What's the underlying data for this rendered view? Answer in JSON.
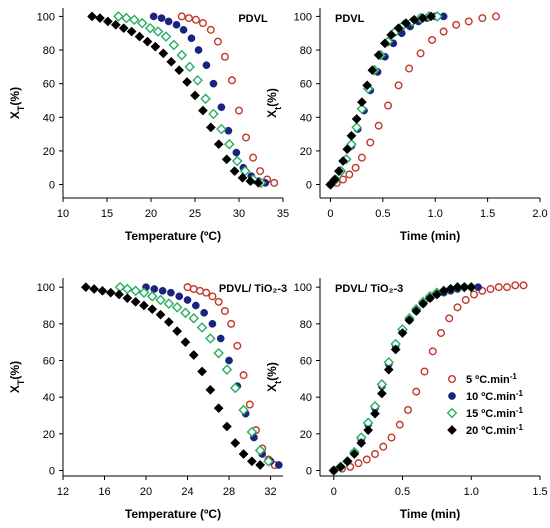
{
  "legend": {
    "entries": [
      {
        "label": "5 ºC.min",
        "sup": "-1",
        "marker": "open-circle",
        "color": "#c0392b"
      },
      {
        "label": "10 ºC.min",
        "sup": "-1",
        "marker": "filled-circle",
        "color": "#1a237e"
      },
      {
        "label": "15 ºC.min",
        "sup": "-1",
        "marker": "open-diamond",
        "color": "#27ae60"
      },
      {
        "label": "20 ºC.min",
        "sup": "-1",
        "marker": "filled-diamond",
        "color": "#000000"
      }
    ]
  },
  "chart_data": [
    {
      "type": "scatter",
      "panel_label": "PDVL",
      "xlabel": "Temperature (ºC)",
      "ylabel": "X_T(%)",
      "xlim": [
        10,
        35
      ],
      "ylim": [
        -8,
        105
      ],
      "xticks": [
        "10",
        "15",
        "20",
        "25",
        "30",
        "35"
      ],
      "yticks": [
        "0",
        "20",
        "40",
        "60",
        "80",
        "100"
      ],
      "series": [
        {
          "marker": "open-circle",
          "color": "#c0392b",
          "x": [
            23.5,
            24.3,
            25.1,
            25.9,
            26.8,
            27.6,
            28.4,
            29.2,
            30.0,
            30.8,
            31.6,
            32.4,
            33.2,
            34.0
          ],
          "y": [
            100,
            99,
            98,
            96,
            92,
            85,
            76,
            62,
            44,
            28,
            16,
            8,
            3,
            1
          ]
        },
        {
          "marker": "filled-circle",
          "color": "#1a237e",
          "x": [
            20.3,
            21.2,
            22.0,
            22.9,
            23.7,
            24.6,
            25.4,
            26.3,
            27.1,
            28.0,
            28.8,
            29.7,
            30.5,
            31.4,
            32.2,
            33.0
          ],
          "y": [
            100,
            99,
            97,
            95,
            92,
            87,
            80,
            71,
            60,
            46,
            32,
            19,
            10,
            5,
            2,
            1
          ]
        },
        {
          "marker": "open-diamond",
          "color": "#27ae60",
          "x": [
            16.3,
            17.2,
            18.1,
            19.0,
            19.9,
            20.8,
            21.7,
            22.6,
            23.5,
            24.4,
            25.3,
            26.2,
            27.1,
            28.0,
            28.9,
            29.8,
            30.7,
            31.6,
            32.5
          ],
          "y": [
            100,
            99,
            98,
            96,
            93,
            91,
            88,
            83,
            77,
            70,
            62,
            51,
            42,
            33,
            24,
            14,
            8,
            3,
            1
          ]
        },
        {
          "marker": "filled-diamond",
          "color": "#000000",
          "x": [
            13.3,
            14.2,
            15.1,
            16.0,
            16.9,
            17.8,
            18.7,
            19.6,
            20.5,
            21.4,
            22.3,
            23.2,
            24.1,
            25.0,
            25.9,
            26.8,
            27.7,
            28.6,
            29.5,
            30.4,
            31.3,
            32.2
          ],
          "y": [
            100,
            99,
            97,
            95,
            93,
            91,
            88,
            85,
            82,
            78,
            73,
            68,
            61,
            53,
            44,
            34,
            24,
            15,
            8,
            4,
            2,
            1
          ]
        }
      ]
    },
    {
      "type": "scatter",
      "panel_label": "PDVL",
      "xlabel": "Time (min)",
      "ylabel": "X_t(%)",
      "xlim": [
        -0.1,
        2.0
      ],
      "ylim": [
        -8,
        105
      ],
      "xticks": [
        "0",
        "0.5",
        "1.0",
        "1.5",
        "2.0"
      ],
      "yticks": [
        "0",
        "20",
        "40",
        "60",
        "80",
        "100"
      ],
      "series": [
        {
          "marker": "open-circle",
          "color": "#c0392b",
          "x": [
            0,
            0.06,
            0.12,
            0.18,
            0.24,
            0.3,
            0.38,
            0.46,
            0.55,
            0.65,
            0.75,
            0.86,
            0.97,
            1.08,
            1.2,
            1.32,
            1.45,
            1.58
          ],
          "y": [
            0,
            1,
            3,
            6,
            10,
            16,
            25,
            35,
            47,
            59,
            69,
            78,
            86,
            91,
            95,
            97,
            99,
            100
          ]
        },
        {
          "marker": "filled-circle",
          "color": "#1a237e",
          "x": [
            0,
            0.05,
            0.1,
            0.15,
            0.2,
            0.26,
            0.32,
            0.38,
            0.45,
            0.52,
            0.6,
            0.68,
            0.76,
            0.84,
            0.92,
            1.0,
            1.08
          ],
          "y": [
            0,
            3,
            8,
            15,
            23,
            33,
            44,
            56,
            67,
            76,
            84,
            90,
            94,
            97,
            99,
            100,
            100
          ]
        },
        {
          "marker": "open-diamond",
          "color": "#27ae60",
          "x": [
            0,
            0.05,
            0.1,
            0.15,
            0.2,
            0.25,
            0.3,
            0.36,
            0.42,
            0.48,
            0.55,
            0.62,
            0.7,
            0.78,
            0.86,
            0.94,
            1.02
          ],
          "y": [
            0,
            3,
            8,
            15,
            24,
            34,
            45,
            57,
            68,
            77,
            85,
            91,
            95,
            97,
            99,
            100,
            100
          ]
        },
        {
          "marker": "filled-diamond",
          "color": "#000000",
          "x": [
            0,
            0.04,
            0.08,
            0.12,
            0.16,
            0.2,
            0.25,
            0.3,
            0.35,
            0.4,
            0.46,
            0.52,
            0.58,
            0.65,
            0.72,
            0.8,
            0.88,
            0.96
          ],
          "y": [
            0,
            3,
            8,
            14,
            21,
            29,
            39,
            49,
            59,
            68,
            77,
            84,
            89,
            93,
            96,
            98,
            99,
            100
          ]
        }
      ]
    },
    {
      "type": "scatter",
      "panel_label": "PDVL/ TiO₂-3",
      "xlabel": "Temperature (ºC)",
      "ylabel": "X_T(%)",
      "xlim": [
        12,
        33.2
      ],
      "ylim": [
        -3,
        105
      ],
      "xticks": [
        "12",
        "16",
        "20",
        "24",
        "28",
        "32"
      ],
      "yticks": [
        "0",
        "20",
        "40",
        "60",
        "80",
        "100"
      ],
      "series": [
        {
          "marker": "open-circle",
          "color": "#c0392b",
          "x": [
            24.0,
            24.6,
            25.2,
            25.8,
            26.4,
            27.0,
            27.6,
            28.2,
            28.8,
            29.4,
            30.0,
            30.6,
            31.2,
            31.8,
            32.4
          ],
          "y": [
            100,
            99,
            98,
            97,
            95,
            92,
            87,
            80,
            68,
            52,
            36,
            22,
            12,
            6,
            3
          ]
        },
        {
          "marker": "filled-circle",
          "color": "#1a237e",
          "x": [
            20.0,
            20.8,
            21.6,
            22.4,
            23.2,
            24.0,
            24.8,
            25.6,
            26.4,
            27.2,
            28.0,
            28.8,
            29.6,
            30.4,
            31.2,
            32.0,
            32.8
          ],
          "y": [
            100,
            99,
            98,
            97,
            95,
            93,
            90,
            86,
            80,
            72,
            60,
            46,
            31,
            18,
            9,
            5,
            3
          ]
        },
        {
          "marker": "open-diamond",
          "color": "#27ae60",
          "x": [
            17.5,
            18.2,
            19.0,
            19.8,
            20.6,
            21.4,
            22.2,
            23.0,
            23.8,
            24.6,
            25.4,
            26.2,
            27.0,
            27.8,
            28.6,
            29.4,
            30.2,
            31.0,
            31.8
          ],
          "y": [
            100,
            99,
            98,
            97,
            95,
            93,
            91,
            89,
            86,
            83,
            78,
            72,
            64,
            55,
            45,
            33,
            21,
            11,
            5
          ]
        },
        {
          "marker": "filled-diamond",
          "color": "#000000",
          "x": [
            14.2,
            15.0,
            15.8,
            16.6,
            17.4,
            18.2,
            19.0,
            19.8,
            20.6,
            21.4,
            22.2,
            23.0,
            23.8,
            24.6,
            25.4,
            26.2,
            27.0,
            27.8,
            28.6,
            29.4,
            30.2,
            31.0
          ],
          "y": [
            100,
            99,
            98,
            97,
            96,
            94,
            92,
            90,
            88,
            85,
            81,
            76,
            70,
            63,
            54,
            44,
            34,
            24,
            15,
            9,
            5,
            3
          ]
        }
      ]
    },
    {
      "type": "scatter",
      "panel_label": "PDVL/ TiO₂-3",
      "xlabel": "Time (min)",
      "ylabel": "X_t(%)",
      "xlim": [
        -0.1,
        1.5
      ],
      "ylim": [
        -3,
        105
      ],
      "xticks": [
        "0",
        "0.5",
        "1.0",
        "1.5"
      ],
      "yticks": [
        "0",
        "20",
        "40",
        "60",
        "80",
        "100"
      ],
      "series": [
        {
          "marker": "open-circle",
          "color": "#c0392b",
          "x": [
            0,
            0.06,
            0.12,
            0.18,
            0.24,
            0.3,
            0.36,
            0.42,
            0.48,
            0.54,
            0.6,
            0.66,
            0.72,
            0.78,
            0.84,
            0.9,
            0.96,
            1.02,
            1.08,
            1.14,
            1.2,
            1.26,
            1.32,
            1.38
          ],
          "y": [
            0,
            1,
            2,
            4,
            6,
            9,
            13,
            18,
            25,
            33,
            43,
            54,
            65,
            75,
            83,
            89,
            93,
            96,
            98,
            99,
            100,
            100,
            101,
            101
          ]
        },
        {
          "marker": "filled-circle",
          "color": "#1a237e",
          "x": [
            0,
            0.05,
            0.1,
            0.15,
            0.2,
            0.25,
            0.3,
            0.35,
            0.4,
            0.45,
            0.5,
            0.55,
            0.6,
            0.65,
            0.7,
            0.75,
            0.8,
            0.85,
            0.9,
            0.95,
            1.0,
            1.05
          ],
          "y": [
            0,
            2,
            5,
            10,
            17,
            25,
            34,
            46,
            58,
            68,
            76,
            82,
            87,
            91,
            94,
            96,
            97,
            98,
            99,
            100,
            100,
            100
          ]
        },
        {
          "marker": "open-diamond",
          "color": "#27ae60",
          "x": [
            0,
            0.05,
            0.1,
            0.15,
            0.2,
            0.25,
            0.3,
            0.35,
            0.4,
            0.45,
            0.5,
            0.55,
            0.6,
            0.65,
            0.7,
            0.75,
            0.8,
            0.85,
            0.9,
            0.95,
            1.0
          ],
          "y": [
            0,
            2,
            5,
            10,
            18,
            26,
            35,
            47,
            59,
            69,
            77,
            83,
            88,
            92,
            95,
            97,
            98,
            99,
            100,
            100,
            100
          ]
        },
        {
          "marker": "filled-diamond",
          "color": "#000000",
          "x": [
            0,
            0.05,
            0.1,
            0.15,
            0.2,
            0.25,
            0.3,
            0.35,
            0.4,
            0.45,
            0.5,
            0.55,
            0.6,
            0.65,
            0.7,
            0.75,
            0.8,
            0.85,
            0.9,
            0.95,
            1.0
          ],
          "y": [
            0,
            2,
            5,
            9,
            15,
            22,
            31,
            42,
            55,
            66,
            75,
            82,
            87,
            91,
            94,
            96,
            98,
            99,
            100,
            100,
            100
          ]
        }
      ]
    }
  ]
}
